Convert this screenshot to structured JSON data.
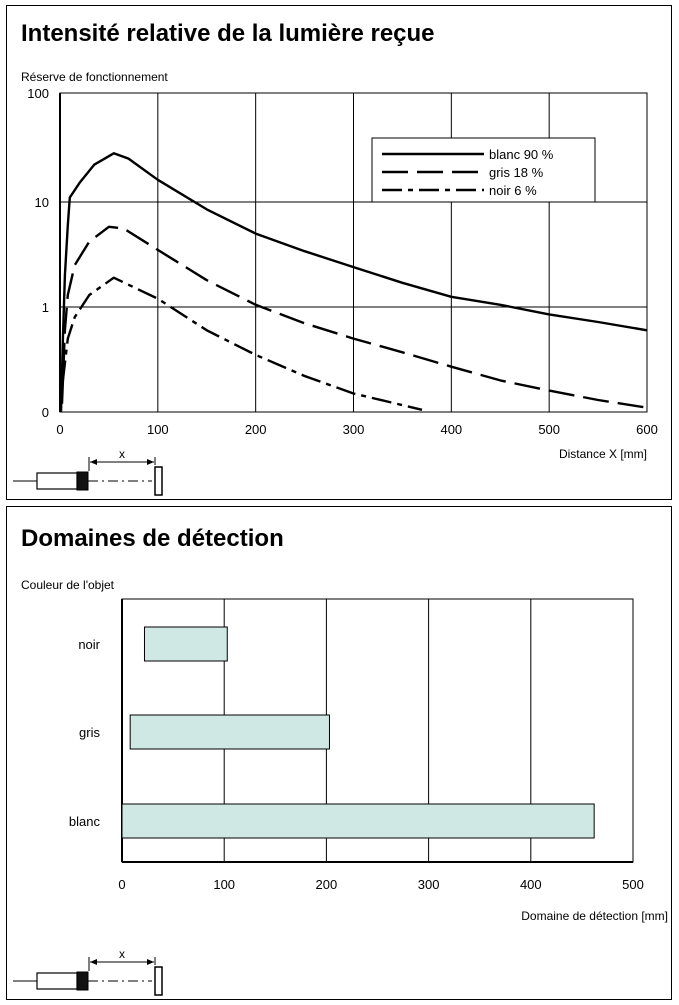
{
  "chart_data": [
    {
      "type": "line",
      "title": "Intensité relative de la lumière reçue",
      "ylabel": "Réserve de fonctionnement",
      "xlabel": "Distance X [mm]",
      "x_ticks": [
        "0",
        "100",
        "200",
        "300",
        "400",
        "500",
        "600"
      ],
      "y_ticks": [
        "0",
        "1",
        "10",
        "100"
      ],
      "xlim": [
        0,
        600
      ],
      "y_scale": "log (bottom tick labelled 0)",
      "grid": true,
      "legend_position": "top-right",
      "sensor_dimension_label": "x",
      "series": [
        {
          "name": "blanc 90 %",
          "style": "solid",
          "points": [
            [
              1,
              0.1
            ],
            [
              3,
              0.5
            ],
            [
              5,
              2
            ],
            [
              8,
              6
            ],
            [
              10,
              11
            ],
            [
              20,
              15
            ],
            [
              35,
              22
            ],
            [
              55,
              28
            ],
            [
              70,
              25
            ],
            [
              100,
              16
            ],
            [
              150,
              8.5
            ],
            [
              200,
              5
            ],
            [
              250,
              3.4
            ],
            [
              300,
              2.4
            ],
            [
              350,
              1.7
            ],
            [
              400,
              1.25
            ],
            [
              450,
              1.05
            ],
            [
              500,
              0.85
            ],
            [
              550,
              0.72
            ],
            [
              600,
              0.6
            ]
          ]
        },
        {
          "name": "gris 18 %",
          "style": "dashed",
          "points": [
            [
              2,
              0.12
            ],
            [
              5,
              0.6
            ],
            [
              8,
              1.3
            ],
            [
              15,
              2.5
            ],
            [
              30,
              4.2
            ],
            [
              50,
              5.8
            ],
            [
              65,
              5.6
            ],
            [
              100,
              3.5
            ],
            [
              150,
              1.8
            ],
            [
              200,
              1.05
            ],
            [
              250,
              0.7
            ],
            [
              300,
              0.5
            ],
            [
              350,
              0.37
            ],
            [
              400,
              0.27
            ],
            [
              450,
              0.2
            ],
            [
              500,
              0.16
            ],
            [
              550,
              0.13
            ],
            [
              600,
              0.11
            ]
          ]
        },
        {
          "name": "noir 6 %",
          "style": "dash-dot",
          "points": [
            [
              3,
              0.2
            ],
            [
              8,
              0.5
            ],
            [
              15,
              0.8
            ],
            [
              30,
              1.3
            ],
            [
              55,
              1.9
            ],
            [
              100,
              1.2
            ],
            [
              150,
              0.6
            ],
            [
              200,
              0.35
            ],
            [
              250,
              0.22
            ],
            [
              300,
              0.15
            ],
            [
              370,
              0.105
            ]
          ]
        }
      ]
    },
    {
      "type": "bar",
      "orientation": "horizontal",
      "title": "Domaines de détection",
      "ylabel": "Couleur de l'objet",
      "xlabel": "Domaine de détection [mm]",
      "x_ticks": [
        "0",
        "100",
        "200",
        "300",
        "400",
        "500"
      ],
      "xlim": [
        0,
        500
      ],
      "grid": true,
      "bar_color": "#cfe8e4",
      "sensor_dimension_label": "x",
      "bars": [
        {
          "label": "noir",
          "start": 22,
          "end": 103
        },
        {
          "label": "gris",
          "start": 8,
          "end": 203
        },
        {
          "label": "blanc",
          "start": 0,
          "end": 462
        }
      ]
    }
  ]
}
